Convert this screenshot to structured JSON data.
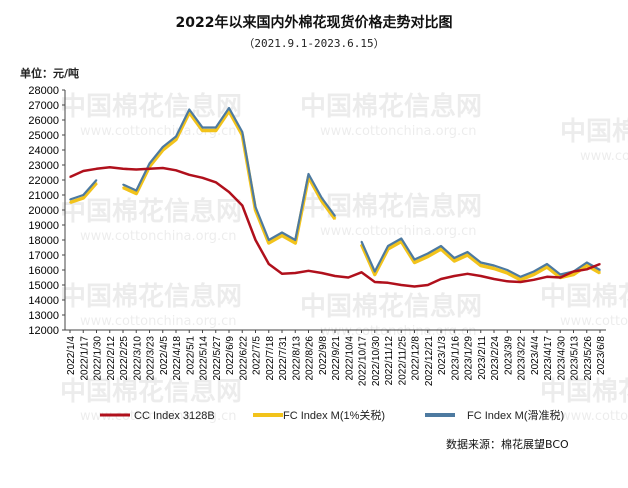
{
  "watermark": {
    "text": "中国棉花信息网",
    "url": "www.cottonchina.org.cn"
  },
  "chart_data": {
    "type": "line",
    "title": "2022年以来国内外棉花现货价格走势对比图",
    "subtitle": "（2021.9.1-2023.6.15）",
    "unit_label": "单位：元/吨",
    "source": "数据来源：棉花展望BCO",
    "ylim": [
      12000,
      28000
    ],
    "y_ticks": [
      12000,
      13000,
      14000,
      15000,
      16000,
      17000,
      18000,
      19000,
      20000,
      21000,
      22000,
      23000,
      24000,
      25000,
      26000,
      27000,
      28000
    ],
    "categories": [
      "2022/1/4",
      "2022/1/17",
      "2022/1/30",
      "2022/2/12",
      "2022/2/25",
      "2022/3/10",
      "2022/3/23",
      "2022/4/5",
      "2022/4/18",
      "2022/5/1",
      "2022/5/14",
      "2022/5/27",
      "2022/6/9",
      "2022/6/22",
      "2022/7/5",
      "2022/7/18",
      "2022/7/31",
      "2022/8/13",
      "2022/8/26",
      "2022/9/8",
      "2022/9/21",
      "2022/10/4",
      "2022/10/17",
      "2022/10/30",
      "2022/11/12",
      "2022/11/25",
      "2022/12/8",
      "2022/12/21",
      "2023/1/3",
      "2023/1/16",
      "2023/1/29",
      "2023/2/11",
      "2023/2/24",
      "2023/3/9",
      "2023/3/22",
      "2023/4/4",
      "2023/4/17",
      "2023/4/30",
      "2023/5/13",
      "2023/5/26",
      "2023/6/8"
    ],
    "series": [
      {
        "name": "CC Index 3128B",
        "color": "#b0101c",
        "values": [
          22200,
          22600,
          22750,
          22850,
          22750,
          22700,
          22750,
          22800,
          22650,
          22350,
          22150,
          21850,
          21200,
          20300,
          18000,
          16400,
          15750,
          15800,
          15950,
          15800,
          15600,
          15500,
          15850,
          15200,
          15150,
          15000,
          14900,
          15000,
          15400,
          15600,
          15750,
          15600,
          15400,
          15250,
          15200,
          15350,
          15550,
          15500,
          15900,
          16050,
          16400
        ]
      },
      {
        "name": "FC Index M(1%关税)",
        "color": "#f2c31b",
        "values": [
          20500,
          20800,
          21800,
          null,
          21500,
          21100,
          22900,
          24000,
          24700,
          26500,
          25300,
          25300,
          26600,
          25000,
          20000,
          17800,
          18300,
          17800,
          22200,
          20600,
          19400,
          null,
          17700,
          15700,
          17400,
          17900,
          16500,
          16900,
          17400,
          16600,
          17000,
          16300,
          16100,
          15800,
          15350,
          15700,
          16200,
          15500,
          15700,
          16300,
          15800
        ]
      },
      {
        "name": "FC Index M(滑准税)",
        "color": "#4d7aa0",
        "values": [
          20700,
          21000,
          22000,
          null,
          21700,
          21300,
          23100,
          24200,
          24900,
          26700,
          25500,
          25500,
          26800,
          25200,
          20200,
          18000,
          18500,
          18000,
          22400,
          20800,
          19600,
          null,
          17900,
          15900,
          17600,
          18100,
          16700,
          17100,
          17600,
          16800,
          17200,
          16500,
          16300,
          16000,
          15550,
          15900,
          16400,
          15700,
          15900,
          16500,
          16000
        ]
      }
    ]
  }
}
